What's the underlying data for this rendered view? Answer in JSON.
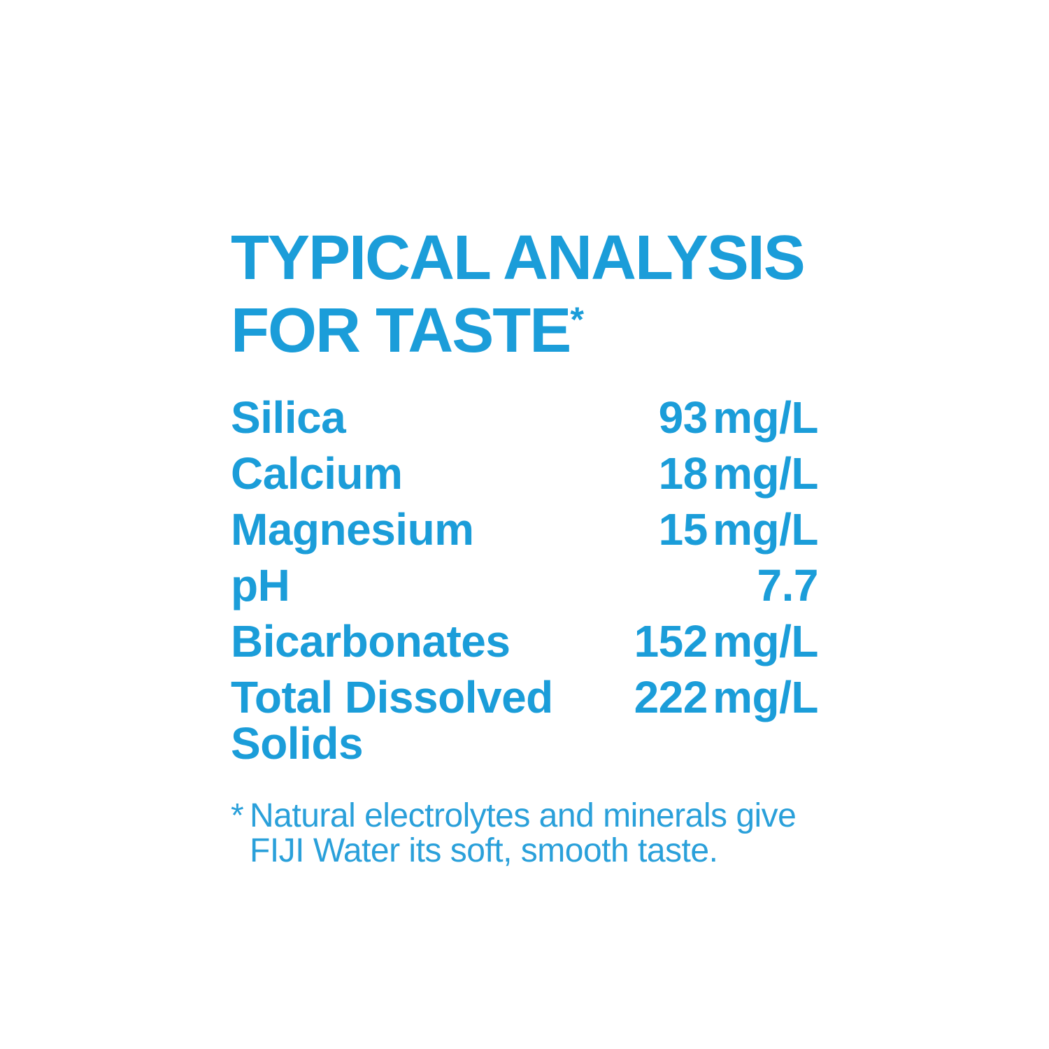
{
  "page": {
    "background_color": "#ffffff",
    "accent_color": "#1b9dd9"
  },
  "header": {
    "title_line1": "TYPICAL ANALYSIS",
    "title_line2": "FOR TASTE",
    "title_superscript": "*"
  },
  "table": {
    "rows": [
      {
        "label": "Silica",
        "value": "93 mg/L"
      },
      {
        "label": "Calcium",
        "value": "18 mg/L"
      },
      {
        "label": "Magnesium",
        "value": "15 mg/L"
      },
      {
        "label": "pH",
        "value": "7.7"
      },
      {
        "label": "Bicarbonates",
        "value": "152 mg/L"
      },
      {
        "label": "Total Dissolved Solids",
        "value": "222 mg/L"
      }
    ]
  },
  "footnote": {
    "asterisk": "*",
    "line1": "Natural electrolytes and minerals give",
    "line2": "FIJI Water its soft, smooth taste."
  },
  "chart_data": {
    "type": "table",
    "title": "TYPICAL ANALYSIS FOR TASTE*",
    "categories": [
      "Silica",
      "Calcium",
      "Magnesium",
      "pH",
      "Bicarbonates",
      "Total Dissolved Solids"
    ],
    "values": [
      93,
      18,
      15,
      7.7,
      152,
      222
    ],
    "units": [
      "mg/L",
      "mg/L",
      "mg/L",
      "",
      "mg/L",
      "mg/L"
    ],
    "annotations": [
      "*Natural electrolytes and minerals give FIJI Water its soft, smooth taste."
    ]
  }
}
